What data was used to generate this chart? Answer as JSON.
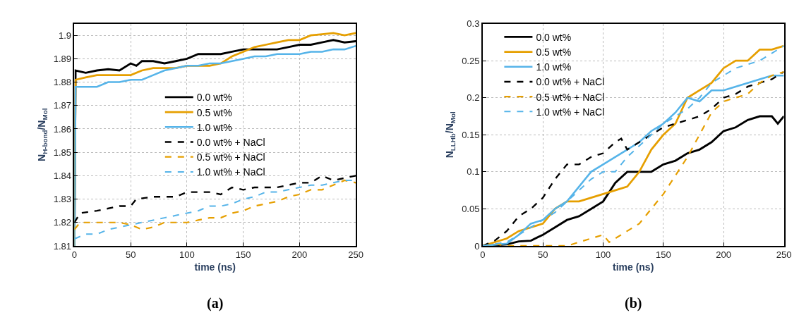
{
  "chart_data": [
    {
      "type": "line",
      "xlabel": "time (ns)",
      "ylabel": "N$_{H-bond}$/N$_{Mol}$",
      "annotations": [
        "(a)"
      ],
      "xlim": [
        0,
        250
      ],
      "xticks": [
        0,
        50,
        100,
        150,
        200,
        250
      ],
      "ylim": [
        1.81,
        1.905
      ],
      "yticks": [
        1.81,
        1.82,
        1.83,
        1.84,
        1.85,
        1.86,
        1.87,
        1.88,
        1.89,
        1.9
      ],
      "grid": true,
      "legend": "center",
      "series": [
        {
          "name": "0.0 wt%",
          "color": "#000000",
          "line_style": "solid",
          "x": [
            0,
            1,
            10,
            20,
            30,
            40,
            50,
            55,
            60,
            70,
            80,
            90,
            100,
            110,
            120,
            130,
            140,
            150,
            160,
            170,
            180,
            190,
            200,
            210,
            220,
            230,
            240,
            250
          ],
          "values": [
            1.81,
            1.885,
            1.884,
            1.885,
            1.8855,
            1.885,
            1.888,
            1.887,
            1.889,
            1.889,
            1.888,
            1.889,
            1.89,
            1.892,
            1.892,
            1.892,
            1.893,
            1.894,
            1.894,
            1.894,
            1.894,
            1.895,
            1.896,
            1.896,
            1.897,
            1.898,
            1.897,
            1.8975
          ]
        },
        {
          "name": "0.5 wt%",
          "color": "#e69f00",
          "line_style": "solid",
          "x": [
            0,
            1,
            10,
            20,
            30,
            40,
            50,
            60,
            70,
            80,
            90,
            100,
            110,
            120,
            130,
            140,
            150,
            160,
            170,
            180,
            190,
            200,
            210,
            220,
            230,
            240,
            250
          ],
          "values": [
            1.81,
            1.881,
            1.882,
            1.883,
            1.883,
            1.883,
            1.883,
            1.885,
            1.886,
            1.886,
            1.886,
            1.887,
            1.887,
            1.887,
            1.888,
            1.891,
            1.893,
            1.895,
            1.896,
            1.897,
            1.898,
            1.898,
            1.9,
            1.9005,
            1.901,
            1.9,
            1.901
          ]
        },
        {
          "name": "1.0 wt%",
          "color": "#56b4e9",
          "line_style": "solid",
          "x": [
            0,
            1,
            10,
            20,
            30,
            40,
            50,
            60,
            70,
            80,
            90,
            100,
            110,
            120,
            130,
            140,
            150,
            160,
            170,
            180,
            190,
            200,
            210,
            220,
            230,
            240,
            250
          ],
          "values": [
            1.81,
            1.878,
            1.878,
            1.878,
            1.88,
            1.88,
            1.881,
            1.881,
            1.883,
            1.885,
            1.886,
            1.887,
            1.887,
            1.888,
            1.888,
            1.889,
            1.89,
            1.891,
            1.891,
            1.892,
            1.892,
            1.892,
            1.893,
            1.893,
            1.894,
            1.894,
            1.8955
          ]
        },
        {
          "name": "0.0 wt% + NaCl",
          "color": "#000000",
          "line_style": "dashed",
          "x": [
            0,
            5,
            20,
            40,
            50,
            55,
            70,
            90,
            100,
            110,
            120,
            130,
            140,
            150,
            160,
            170,
            180,
            190,
            200,
            210,
            220,
            230,
            240,
            250
          ],
          "values": [
            1.82,
            1.824,
            1.825,
            1.827,
            1.827,
            1.83,
            1.831,
            1.831,
            1.833,
            1.833,
            1.833,
            1.832,
            1.835,
            1.834,
            1.835,
            1.835,
            1.835,
            1.836,
            1.837,
            1.837,
            1.84,
            1.838,
            1.839,
            1.84
          ]
        },
        {
          "name": "0.5 wt% + NaCl",
          "color": "#e69f00",
          "line_style": "dashed",
          "x": [
            0,
            5,
            20,
            30,
            40,
            50,
            60,
            70,
            80,
            90,
            100,
            110,
            120,
            130,
            140,
            150,
            160,
            170,
            180,
            190,
            200,
            210,
            220,
            230,
            240,
            250
          ],
          "values": [
            1.817,
            1.82,
            1.82,
            1.82,
            1.82,
            1.819,
            1.817,
            1.818,
            1.82,
            1.82,
            1.82,
            1.821,
            1.822,
            1.822,
            1.824,
            1.825,
            1.827,
            1.828,
            1.829,
            1.831,
            1.832,
            1.834,
            1.834,
            1.836,
            1.838,
            1.837
          ]
        },
        {
          "name": "1.0 wt% + NaCl",
          "color": "#56b4e9",
          "line_style": "dashed",
          "x": [
            0,
            10,
            20,
            30,
            40,
            50,
            60,
            70,
            80,
            90,
            100,
            110,
            120,
            130,
            140,
            150,
            160,
            170,
            180,
            190,
            200,
            210,
            220,
            230,
            240,
            250
          ],
          "values": [
            1.813,
            1.815,
            1.815,
            1.817,
            1.818,
            1.819,
            1.82,
            1.821,
            1.822,
            1.823,
            1.824,
            1.825,
            1.827,
            1.827,
            1.828,
            1.83,
            1.831,
            1.833,
            1.833,
            1.834,
            1.835,
            1.836,
            1.836,
            1.837,
            1.838,
            1.838
          ]
        }
      ]
    },
    {
      "type": "line",
      "xlabel": "time (ns)",
      "ylabel": "N$_{LLHb}$/N$_{Mol}$",
      "annotations": [
        "(b)"
      ],
      "xlim": [
        0,
        250
      ],
      "xticks": [
        0,
        50,
        100,
        150,
        200,
        250
      ],
      "ylim": [
        0,
        0.3
      ],
      "yticks": [
        0,
        0.05,
        0.1,
        0.15,
        0.2,
        0.25,
        0.3
      ],
      "grid": true,
      "legend": "top left",
      "series": [
        {
          "name": "0.0 wt%",
          "color": "#000000",
          "line_style": "solid",
          "x": [
            0,
            20,
            30,
            40,
            50,
            60,
            70,
            80,
            90,
            100,
            110,
            120,
            130,
            140,
            150,
            160,
            170,
            180,
            190,
            200,
            210,
            220,
            230,
            240,
            245,
            250
          ],
          "values": [
            0,
            0.002,
            0.006,
            0.007,
            0.015,
            0.025,
            0.035,
            0.04,
            0.05,
            0.06,
            0.085,
            0.1,
            0.1,
            0.1,
            0.11,
            0.115,
            0.125,
            0.13,
            0.14,
            0.155,
            0.16,
            0.17,
            0.175,
            0.175,
            0.165,
            0.175
          ]
        },
        {
          "name": "0.5 wt%",
          "color": "#e69f00",
          "line_style": "solid",
          "x": [
            0,
            10,
            20,
            30,
            40,
            50,
            60,
            70,
            80,
            90,
            100,
            110,
            120,
            130,
            140,
            150,
            160,
            170,
            180,
            190,
            200,
            210,
            220,
            230,
            240,
            250
          ],
          "values": [
            0,
            0.005,
            0.01,
            0.02,
            0.025,
            0.03,
            0.05,
            0.06,
            0.06,
            0.065,
            0.07,
            0.075,
            0.08,
            0.1,
            0.13,
            0.15,
            0.165,
            0.2,
            0.21,
            0.22,
            0.24,
            0.25,
            0.25,
            0.265,
            0.265,
            0.27
          ]
        },
        {
          "name": "1.0 wt%",
          "color": "#56b4e9",
          "line_style": "solid",
          "x": [
            0,
            20,
            30,
            40,
            50,
            60,
            70,
            80,
            90,
            100,
            110,
            120,
            130,
            140,
            150,
            160,
            170,
            180,
            190,
            200,
            210,
            220,
            230,
            240,
            250
          ],
          "values": [
            0,
            0.003,
            0.015,
            0.03,
            0.035,
            0.05,
            0.06,
            0.08,
            0.1,
            0.11,
            0.12,
            0.13,
            0.14,
            0.155,
            0.165,
            0.18,
            0.2,
            0.195,
            0.21,
            0.21,
            0.215,
            0.22,
            0.225,
            0.23,
            0.23
          ]
        },
        {
          "name": "0.0 wt% + NaCl",
          "color": "#000000",
          "line_style": "dashed",
          "x": [
            0,
            10,
            20,
            30,
            40,
            50,
            60,
            70,
            80,
            90,
            100,
            110,
            115,
            120,
            130,
            140,
            150,
            160,
            170,
            180,
            190,
            200,
            210,
            220,
            230,
            240,
            250
          ],
          "values": [
            0,
            0.007,
            0.02,
            0.04,
            0.05,
            0.065,
            0.09,
            0.11,
            0.11,
            0.12,
            0.125,
            0.14,
            0.145,
            0.13,
            0.14,
            0.15,
            0.16,
            0.165,
            0.17,
            0.175,
            0.185,
            0.2,
            0.205,
            0.215,
            0.22,
            0.225,
            0.235
          ]
        },
        {
          "name": "0.5 wt% + NaCl",
          "color": "#e69f00",
          "line_style": "dashed",
          "x": [
            0,
            10,
            20,
            40,
            60,
            70,
            80,
            90,
            100,
            105,
            110,
            120,
            130,
            140,
            150,
            160,
            170,
            180,
            190,
            200,
            210,
            220,
            230,
            240,
            250
          ],
          "values": [
            0,
            0.003,
            0,
            0,
            0,
            0,
            0.005,
            0.01,
            0.015,
            0.005,
            0.01,
            0.02,
            0.03,
            0.05,
            0.07,
            0.095,
            0.12,
            0.15,
            0.18,
            0.195,
            0.2,
            0.205,
            0.22,
            0.23,
            0.235
          ]
        },
        {
          "name": "1.0 wt% + NaCl",
          "color": "#56b4e9",
          "line_style": "dashed",
          "x": [
            0,
            20,
            30,
            40,
            50,
            60,
            70,
            80,
            90,
            100,
            110,
            120,
            130,
            140,
            150,
            160,
            170,
            180,
            190,
            200,
            210,
            220,
            230,
            240,
            250
          ],
          "values": [
            0,
            0.005,
            0.015,
            0.025,
            0.035,
            0.045,
            0.06,
            0.075,
            0.09,
            0.1,
            0.1,
            0.12,
            0.135,
            0.15,
            0.165,
            0.175,
            0.185,
            0.2,
            0.22,
            0.23,
            0.24,
            0.245,
            0.25,
            0.26,
            0.27
          ]
        }
      ]
    }
  ]
}
